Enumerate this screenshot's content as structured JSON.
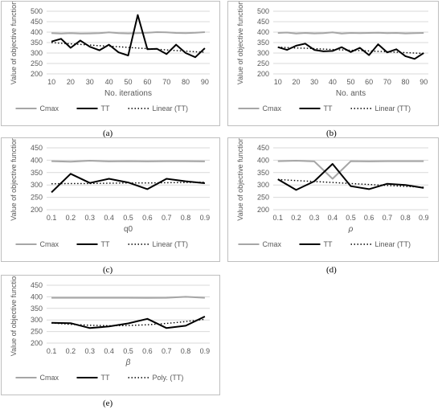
{
  "chart_data": [
    {
      "id": "a",
      "type": "line",
      "panel_label": "(a)",
      "xlabel": "No. iterations",
      "ylabel": "Value of objective function",
      "x": [
        10,
        15,
        20,
        25,
        30,
        35,
        40,
        45,
        50,
        55,
        60,
        65,
        70,
        75,
        80,
        85,
        90
      ],
      "x_ticks": [
        "10",
        "20",
        "30",
        "40",
        "50",
        "60",
        "70",
        "80",
        "90"
      ],
      "ylim": [
        200,
        500
      ],
      "y_ticks": [
        "200",
        "250",
        "300",
        "350",
        "400",
        "450",
        "500"
      ],
      "grid": true,
      "legend_position": "bottom",
      "series": [
        {
          "name": "Cmax",
          "color": "#a6a6a6",
          "style": "solid",
          "values": [
            395,
            393,
            395,
            393,
            394,
            395,
            399,
            395,
            394,
            395,
            397,
            400,
            399,
            396,
            395,
            397,
            400
          ]
        },
        {
          "name": "TT",
          "color": "#000000",
          "style": "solid",
          "values": [
            355,
            368,
            325,
            360,
            330,
            313,
            340,
            303,
            288,
            482,
            318,
            320,
            295,
            340,
            300,
            280,
            323
          ]
        },
        {
          "name": "Linear (TT)",
          "color": "#000000",
          "style": "dotted",
          "values": [
            350,
            347,
            344,
            341,
            338,
            335,
            333,
            330,
            327,
            324,
            321,
            318,
            315,
            312,
            309,
            306,
            304
          ]
        }
      ]
    },
    {
      "id": "b",
      "type": "line",
      "panel_label": "(b)",
      "xlabel": "No. ants",
      "ylabel": "Value of objective function",
      "x": [
        10,
        15,
        20,
        25,
        30,
        35,
        40,
        45,
        50,
        55,
        60,
        65,
        70,
        75,
        80,
        85,
        90
      ],
      "x_ticks": [
        "10",
        "20",
        "30",
        "40",
        "50",
        "60",
        "70",
        "80",
        "90"
      ],
      "ylim": [
        200,
        500
      ],
      "y_ticks": [
        "200",
        "250",
        "300",
        "350",
        "400",
        "450",
        "500"
      ],
      "grid": true,
      "legend_position": "bottom",
      "series": [
        {
          "name": "Cmax",
          "color": "#a6a6a6",
          "style": "solid",
          "values": [
            396,
            398,
            393,
            396,
            394,
            395,
            399,
            393,
            396,
            395,
            396,
            397,
            395,
            396,
            394,
            395,
            396
          ]
        },
        {
          "name": "TT",
          "color": "#000000",
          "style": "solid",
          "values": [
            328,
            315,
            335,
            345,
            315,
            308,
            310,
            328,
            305,
            325,
            290,
            342,
            303,
            318,
            285,
            272,
            300
          ]
        },
        {
          "name": "Linear (TT)",
          "color": "#000000",
          "style": "dotted",
          "values": [
            328,
            326,
            324,
            323,
            321,
            319,
            317,
            315,
            313,
            312,
            310,
            308,
            306,
            304,
            302,
            300,
            298
          ]
        }
      ]
    },
    {
      "id": "c",
      "type": "line",
      "panel_label": "(c)",
      "xlabel": "q0",
      "ylabel": "Value of objective function",
      "x": [
        0.1,
        0.2,
        0.3,
        0.4,
        0.5,
        0.6,
        0.7,
        0.8,
        0.9
      ],
      "x_ticks": [
        "0.1",
        "0.2",
        "0.3",
        "0.4",
        "0.5",
        "0.6",
        "0.7",
        "0.8",
        "0.9"
      ],
      "ylim": [
        200,
        450
      ],
      "y_ticks": [
        "200",
        "250",
        "300",
        "350",
        "400",
        "450"
      ],
      "grid": true,
      "legend_position": "bottom",
      "series": [
        {
          "name": "Cmax",
          "color": "#a6a6a6",
          "style": "solid",
          "values": [
            396,
            394,
            398,
            395,
            396,
            395,
            396,
            396,
            395
          ]
        },
        {
          "name": "TT",
          "color": "#000000",
          "style": "solid",
          "values": [
            270,
            345,
            308,
            325,
            310,
            283,
            325,
            315,
            307
          ]
        },
        {
          "name": "Linear (TT)",
          "color": "#000000",
          "style": "dotted",
          "values": [
            305,
            306,
            306,
            307,
            308,
            308,
            309,
            310,
            311
          ]
        }
      ]
    },
    {
      "id": "d",
      "type": "line",
      "panel_label": "(d)",
      "xlabel": "ρ",
      "ylabel": "Value of objective function",
      "x": [
        0.1,
        0.2,
        0.3,
        0.4,
        0.5,
        0.6,
        0.7,
        0.8,
        0.9
      ],
      "x_ticks": [
        "0.1",
        "0.2",
        "0.3",
        "0.4",
        "0.5",
        "0.6",
        "0.7",
        "0.8",
        "0.9"
      ],
      "ylim": [
        200,
        450
      ],
      "y_ticks": [
        "200",
        "250",
        "300",
        "350",
        "400",
        "450"
      ],
      "grid": true,
      "legend_position": "bottom",
      "series": [
        {
          "name": "Cmax",
          "color": "#a6a6a6",
          "style": "solid",
          "values": [
            396,
            398,
            395,
            325,
            396,
            395,
            396,
            396,
            396
          ]
        },
        {
          "name": "TT",
          "color": "#000000",
          "style": "solid",
          "values": [
            323,
            280,
            315,
            385,
            295,
            283,
            305,
            300,
            288
          ]
        },
        {
          "name": "Linear (TT)",
          "color": "#000000",
          "style": "dotted",
          "values": [
            322,
            318,
            314,
            310,
            306,
            302,
            298,
            294,
            291
          ]
        }
      ]
    },
    {
      "id": "e",
      "type": "line",
      "panel_label": "(e)",
      "xlabel": "β",
      "ylabel": "Value of objective function",
      "x": [
        0.1,
        0.2,
        0.3,
        0.4,
        0.5,
        0.6,
        0.7,
        0.8,
        0.9
      ],
      "x_ticks": [
        "0.1",
        "0.2",
        "0.3",
        "0.4",
        "0.5",
        "0.6",
        "0.7",
        "0.8",
        "0.9"
      ],
      "ylim": [
        200,
        450
      ],
      "y_ticks": [
        "200",
        "250",
        "300",
        "350",
        "400",
        "450"
      ],
      "grid": true,
      "legend_position": "bottom",
      "series": [
        {
          "name": "Cmax",
          "color": "#a6a6a6",
          "style": "solid",
          "values": [
            396,
            396,
            396,
            396,
            396,
            395,
            396,
            400,
            396
          ]
        },
        {
          "name": "TT",
          "color": "#000000",
          "style": "solid",
          "values": [
            288,
            286,
            265,
            272,
            285,
            305,
            265,
            275,
            315
          ]
        },
        {
          "name": "Poly. (TT)",
          "color": "#000000",
          "style": "dotted",
          "values": [
            287,
            281,
            277,
            275,
            276,
            279,
            285,
            293,
            303
          ]
        }
      ]
    }
  ]
}
